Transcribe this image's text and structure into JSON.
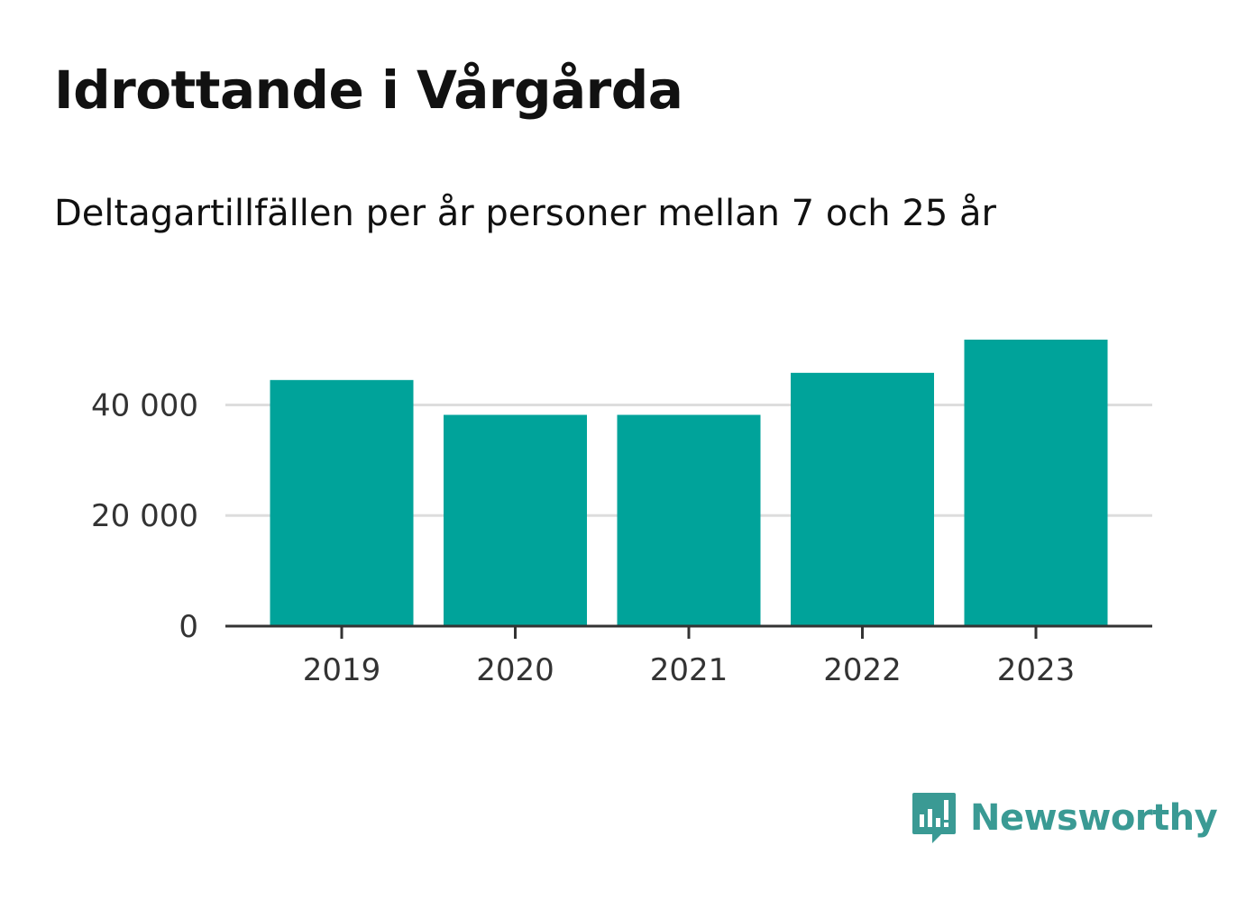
{
  "title": "Idrottande i Vårgårda",
  "subtitle": "Deltagartillfällen per år personer mellan 7 och 25 år",
  "colors": {
    "bar": "#00a39a",
    "grid": "#dddddd",
    "axis": "#333333",
    "brand": "#3a9a94"
  },
  "brand": {
    "name": "Newsworthy",
    "icon": "newsworthy-logo-icon"
  },
  "chart_data": {
    "type": "bar",
    "categories": [
      "2019",
      "2020",
      "2021",
      "2022",
      "2023"
    ],
    "values": [
      44500,
      38200,
      38200,
      45800,
      51800
    ],
    "ylim": [
      0,
      55000
    ],
    "yticks": [
      0,
      20000,
      40000
    ],
    "ytick_labels": [
      "0",
      "20 000",
      "40 000"
    ],
    "grid": true,
    "legend": "none"
  }
}
